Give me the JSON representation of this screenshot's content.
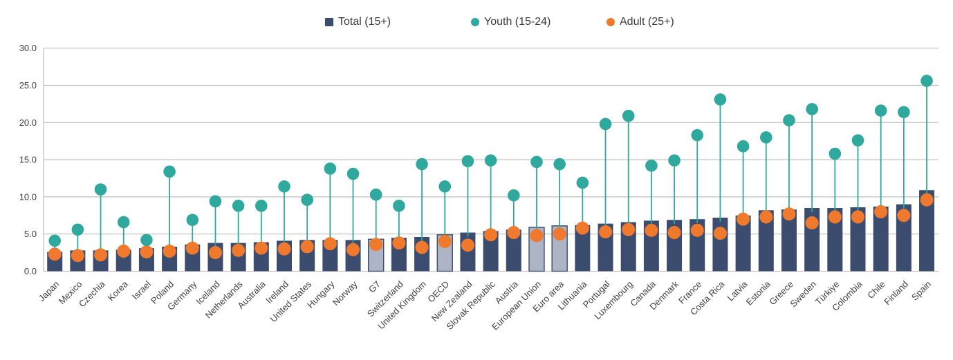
{
  "legend": {
    "items": [
      {
        "label": "Total (15+)",
        "marker": "square",
        "color": "#3C4C6E"
      },
      {
        "label": "Youth (15-24)",
        "marker": "circle",
        "color": "#2FA89E"
      },
      {
        "label": "Adult (25+)",
        "marker": "circle",
        "color": "#EF7A2D"
      }
    ]
  },
  "colors": {
    "bar": "#3C4C6E",
    "aggregate_bar_fill": "#ACB4C6",
    "aggregate_bar_border": "#3C4C6E",
    "youth_dot": "#2FA89E",
    "adult_dot": "#EF7A2D",
    "gridline": "#BFBFBF",
    "axis_text": "#404040"
  },
  "chart_data": {
    "type": "bar",
    "subtype": "bars-with-lollipop-points",
    "title": "",
    "xlabel": "",
    "ylabel": "",
    "ylim": [
      0,
      30
    ],
    "yticks": [
      0,
      5,
      10,
      15,
      20,
      25,
      30
    ],
    "ytick_labels": [
      "0.0",
      "5.0",
      "10.0",
      "15.0",
      "20.0",
      "25.0",
      "30.0"
    ],
    "grid": true,
    "legend_position": "top",
    "categories": [
      "Japan",
      "Mexico",
      "Czechia",
      "Korea",
      "Israel",
      "Poland",
      "Germany",
      "Iceland",
      "Netherlands",
      "Australia",
      "Ireland",
      "United States",
      "Hungary",
      "Norway",
      "G7",
      "Switzerland",
      "United Kingdom",
      "OECD",
      "New Zealand",
      "Slovak Republic",
      "Austria",
      "European Union",
      "Euro area",
      "Lithuania",
      "Portugal",
      "Luxembourg",
      "Canada",
      "Denmark",
      "France",
      "Costa Rica",
      "Latvia",
      "Estonia",
      "Greece",
      "Sweden",
      "Türkiye",
      "Colombia",
      "Chile",
      "Finland",
      "Spain"
    ],
    "highlighted_categories": [
      "G7",
      "OECD",
      "European Union",
      "Euro area"
    ],
    "series": [
      {
        "name": "Total (15+)",
        "style": "bar",
        "values": [
          2.6,
          2.8,
          2.8,
          2.9,
          3.1,
          3.3,
          3.6,
          3.8,
          3.8,
          3.9,
          4.1,
          4.2,
          4.2,
          4.2,
          4.3,
          4.5,
          4.6,
          4.9,
          5.2,
          5.4,
          5.6,
          5.9,
          6.1,
          6.2,
          6.4,
          6.6,
          6.8,
          6.9,
          7.0,
          7.2,
          7.5,
          8.2,
          8.3,
          8.5,
          8.5,
          8.6,
          8.7,
          9.0,
          10.9
        ]
      },
      {
        "name": "Youth (15-24)",
        "style": "point-with-stem",
        "values": [
          4.1,
          5.6,
          11.0,
          6.6,
          4.2,
          13.4,
          6.9,
          9.4,
          8.8,
          8.8,
          11.4,
          9.6,
          13.8,
          13.1,
          10.3,
          8.8,
          14.4,
          11.4,
          14.8,
          14.9,
          10.2,
          14.7,
          14.4,
          11.9,
          19.8,
          20.9,
          14.2,
          14.9,
          18.3,
          23.1,
          16.8,
          18.0,
          20.3,
          21.8,
          15.8,
          17.6,
          21.6,
          21.4,
          25.6
        ]
      },
      {
        "name": "Adult (25+)",
        "style": "point",
        "values": [
          2.3,
          2.1,
          2.2,
          2.7,
          2.6,
          2.7,
          3.1,
          2.5,
          2.8,
          3.1,
          3.0,
          3.3,
          3.7,
          2.9,
          3.6,
          3.8,
          3.2,
          4.0,
          3.5,
          4.9,
          5.2,
          4.8,
          5.0,
          5.8,
          5.3,
          5.6,
          5.5,
          5.2,
          5.5,
          5.1,
          7.0,
          7.3,
          7.7,
          6.5,
          7.3,
          7.3,
          8.0,
          7.5,
          9.6
        ]
      }
    ]
  }
}
